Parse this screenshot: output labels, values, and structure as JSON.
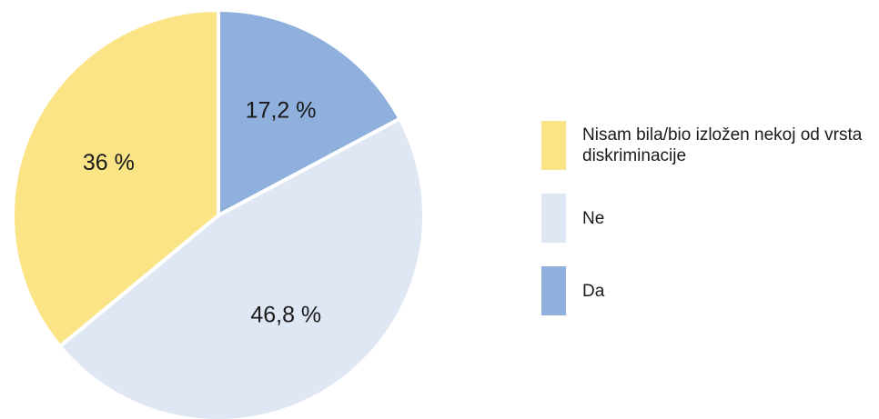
{
  "chart_data": {
    "type": "pie",
    "categories": [
      "Da",
      "Ne",
      "Nisam bila/bio izložen nekoj od vrsta diskriminacije"
    ],
    "values": [
      17.2,
      46.8,
      36
    ],
    "value_labels": [
      "17,2 %",
      "46,8 %",
      "36 %"
    ],
    "colors": [
      "#8fb0dc",
      "#dfe6f4",
      "#fbe486"
    ],
    "legend": "right"
  }
}
